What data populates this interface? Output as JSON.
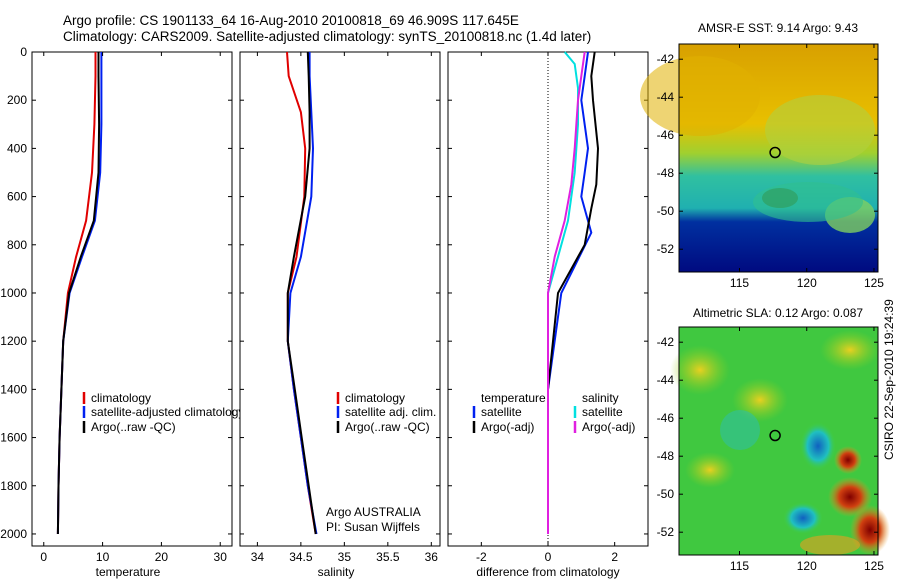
{
  "title": {
    "line1": "Argo profile: CS 1901133_64 16-Aug-2010 20100818_69 46.909S 117.645E",
    "line2": "Climatology: CARS2009. Satellite-adjusted climatology: synTS_20100818.nc (1.4d later)"
  },
  "side_label": "CSIRO 22-Sep-2010 19:24:39",
  "colors": {
    "red": "#e00000",
    "blue": "#0020f0",
    "black": "#000000",
    "cyan": "#00e0e0",
    "magenta": "#e020e0"
  },
  "chart_data": [
    {
      "type": "line",
      "name": "temperature",
      "xlabel": "temperature",
      "xlim": [
        -2,
        32
      ],
      "ylim": [
        0,
        2050
      ],
      "xticks": [
        0,
        10,
        20,
        30
      ],
      "yticks": [
        0,
        200,
        400,
        600,
        800,
        1000,
        1200,
        1400,
        1600,
        1800,
        2000
      ],
      "series": [
        {
          "name": "climatology",
          "color": "red",
          "x": [
            8.8,
            8.8,
            8.6,
            8.2,
            7.2,
            5.5,
            4.1,
            3.3,
            3.0,
            2.7,
            2.5,
            2.4
          ],
          "y": [
            0,
            100,
            300,
            500,
            700,
            850,
            1000,
            1200,
            1400,
            1600,
            1800,
            2000
          ]
        },
        {
          "name": "satellite-adjusted climatology",
          "color": "blue",
          "x": [
            9.8,
            9.8,
            9.8,
            9.6,
            8.7,
            6.5,
            4.4,
            3.3,
            3.0,
            2.7,
            2.5,
            2.4
          ],
          "y": [
            0,
            100,
            300,
            500,
            700,
            850,
            1000,
            1200,
            1400,
            1600,
            1800,
            2000
          ]
        },
        {
          "name": "Argo(..raw -QC)",
          "color": "black",
          "x": [
            9.3,
            9.3,
            9.4,
            9.3,
            8.5,
            6.3,
            4.3,
            3.3,
            3.0,
            2.7,
            2.5,
            2.4
          ],
          "y": [
            0,
            100,
            300,
            500,
            700,
            850,
            1000,
            1200,
            1400,
            1600,
            1800,
            2000
          ]
        }
      ],
      "legend": [
        "climatology",
        "satellite-adjusted climatology",
        "Argo(..raw -QC)"
      ]
    },
    {
      "type": "line",
      "name": "salinity",
      "xlabel": "salinity",
      "xlim": [
        33.8,
        36.1
      ],
      "ylim": [
        0,
        2050
      ],
      "xticks": [
        34,
        34.5,
        35,
        35.5,
        36
      ],
      "xticklabels": [
        "34",
        "34.5",
        "35",
        "35.5",
        "36"
      ],
      "series": [
        {
          "name": "climatology",
          "color": "red",
          "x": [
            34.34,
            34.36,
            34.5,
            34.55,
            34.54,
            34.45,
            34.35,
            34.35,
            34.42,
            34.5,
            34.58,
            34.67
          ],
          "y": [
            0,
            100,
            250,
            400,
            600,
            850,
            1000,
            1200,
            1400,
            1600,
            1800,
            2000
          ]
        },
        {
          "name": "satellite adj. clim.",
          "color": "blue",
          "x": [
            34.6,
            34.6,
            34.62,
            34.64,
            34.62,
            34.5,
            34.38,
            34.35,
            34.42,
            34.5,
            34.58,
            34.68
          ],
          "y": [
            0,
            100,
            250,
            400,
            600,
            850,
            1000,
            1200,
            1400,
            1600,
            1800,
            2000
          ]
        },
        {
          "name": "Argo(..raw -QC)",
          "color": "black",
          "x": [
            34.58,
            34.59,
            34.6,
            34.6,
            34.55,
            34.42,
            34.35,
            34.35,
            34.43,
            34.51,
            34.59,
            34.67
          ],
          "y": [
            0,
            100,
            250,
            400,
            600,
            850,
            1000,
            1200,
            1400,
            1600,
            1800,
            2000
          ]
        }
      ],
      "legend": [
        "climatology",
        "satellite adj. clim.",
        "Argo(..raw -QC)"
      ],
      "annotation": [
        "Argo AUSTRALIA",
        "PI: Susan Wijffels"
      ]
    },
    {
      "type": "line",
      "name": "difference",
      "xlabel": "difference from climatology",
      "xlim": [
        -3,
        3
      ],
      "ylim": [
        0,
        2050
      ],
      "xticks": [
        -2,
        0,
        2
      ],
      "xticklabels": [
        "-2",
        "0",
        "2"
      ],
      "zero_line": true,
      "series": [
        {
          "name": "temperature satellite",
          "color": "blue",
          "x": [
            1.2,
            1.1,
            1.0,
            1.2,
            1.1,
            1.0,
            1.3,
            0.4,
            0.0,
            0.0
          ],
          "y": [
            0,
            100,
            200,
            400,
            500,
            600,
            750,
            1000,
            1400,
            2000
          ]
        },
        {
          "name": "temperature Argo(-adj)",
          "color": "black",
          "x": [
            1.4,
            1.3,
            1.35,
            1.5,
            1.45,
            1.3,
            1.1,
            0.3,
            0.0,
            0.0
          ],
          "y": [
            0,
            100,
            200,
            400,
            550,
            650,
            800,
            1000,
            1400,
            2000
          ]
        },
        {
          "name": "salinity satellite",
          "color": "cyan",
          "x": [
            0.5,
            0.8,
            0.9,
            0.9,
            0.8,
            0.6,
            0.3,
            0.0,
            0.0,
            0.0
          ],
          "y": [
            0,
            50,
            150,
            300,
            500,
            700,
            850,
            1000,
            1400,
            2000
          ]
        },
        {
          "name": "salinity Argo(-adj)",
          "color": "magenta",
          "x": [
            1.1,
            1.0,
            0.9,
            0.8,
            0.7,
            0.5,
            0.2,
            0.0,
            0.0,
            0.0
          ],
          "y": [
            0,
            100,
            200,
            400,
            550,
            700,
            850,
            1000,
            1400,
            2000
          ]
        }
      ],
      "legend_left": {
        "header": "temperature",
        "items": [
          "satellite",
          "Argo(-adj)"
        ]
      },
      "legend_right": {
        "header": "salinity",
        "items": [
          "satellite",
          "Argo(-adj)"
        ]
      }
    },
    {
      "type": "heatmap",
      "name": "sst_map",
      "title": "AMSR-E SST: 9.14 Argo: 9.43",
      "xlim": [
        110.5,
        125.3
      ],
      "ylim": [
        -53.2,
        -41.2
      ],
      "xticks": [
        115,
        120,
        125
      ],
      "yticks": [
        -42,
        -44,
        -46,
        -48,
        -50,
        -52
      ],
      "marker": {
        "lon": 117.645,
        "lat": -46.909
      }
    },
    {
      "type": "heatmap",
      "name": "sla_map",
      "title": "Altimetric SLA: 0.12 Argo: 0.087",
      "xlim": [
        110.5,
        125.3
      ],
      "ylim": [
        -53.2,
        -41.2
      ],
      "xticks": [
        115,
        120,
        125
      ],
      "yticks": [
        -42,
        -44,
        -46,
        -48,
        -50,
        -52
      ],
      "marker": {
        "lon": 117.645,
        "lat": -46.909
      }
    }
  ]
}
